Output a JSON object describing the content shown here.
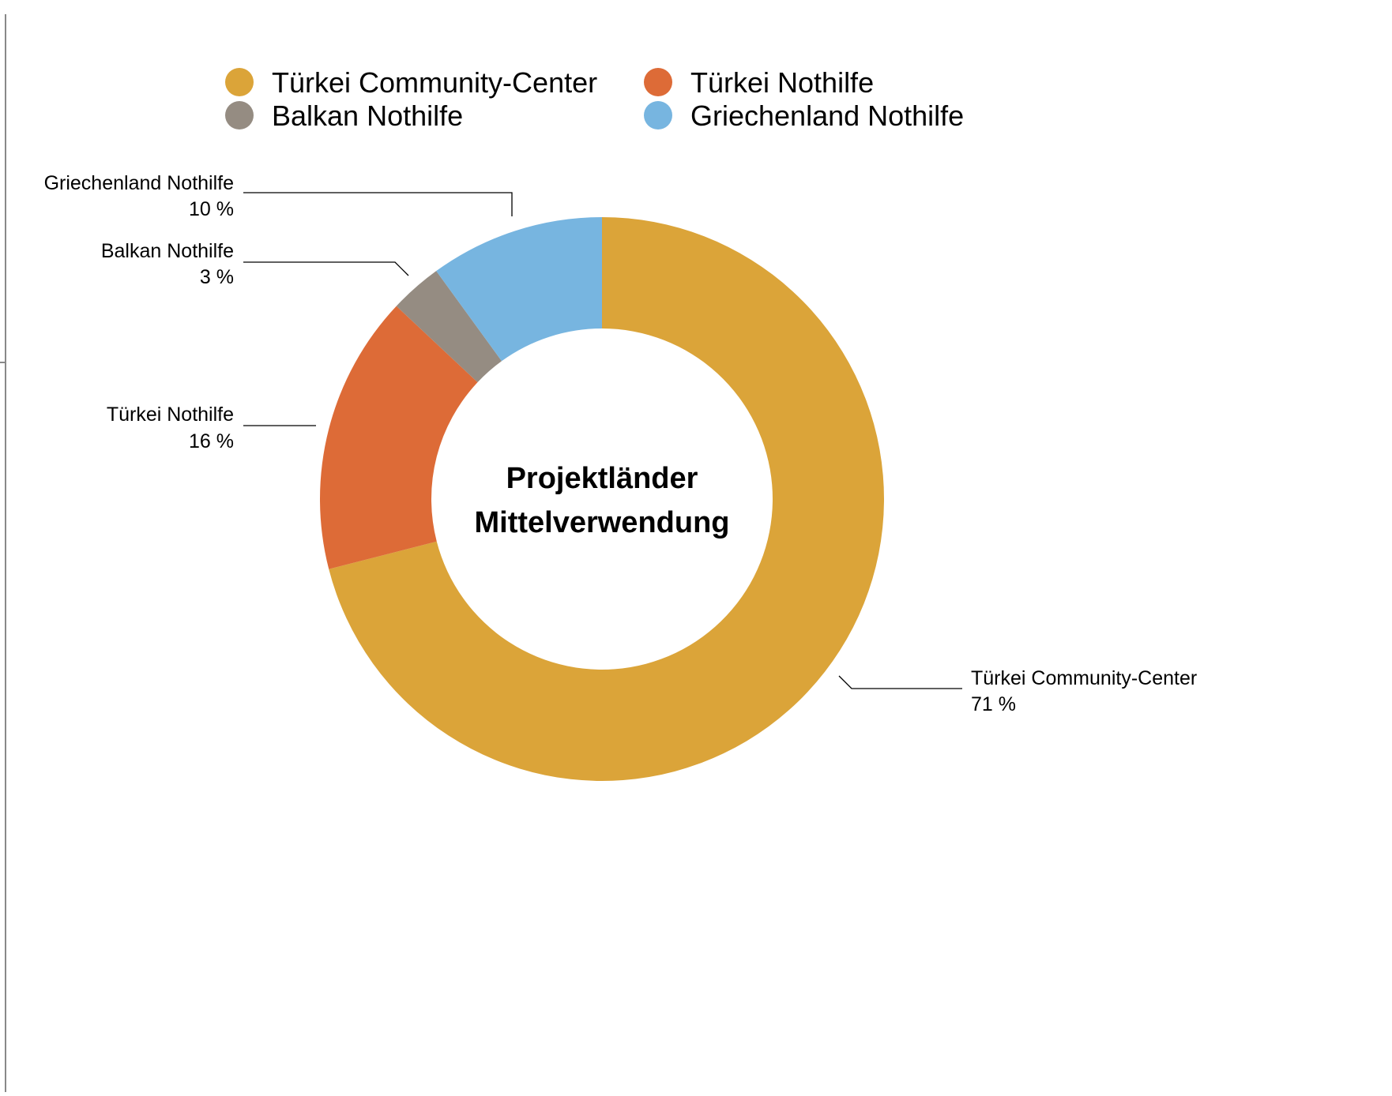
{
  "chart_data": {
    "type": "pie",
    "variant": "donut",
    "center_label": [
      "Projektländer",
      "Mittelverwendung"
    ],
    "legend": {
      "placement": "top",
      "entries": [
        "Türkei Community-Center",
        "Türkei Nothilfe",
        "Balkan Nothilfe",
        "Griechenland Nothilfe"
      ]
    },
    "slices": [
      {
        "label": "Türkei Community-Center",
        "value": 71,
        "value_label": "71 %",
        "color": "#DBA439"
      },
      {
        "label": "Türkei Nothilfe",
        "value": 16,
        "value_label": "16 %",
        "color": "#DD6B37"
      },
      {
        "label": "Balkan Nothilfe",
        "value": 3,
        "value_label": "3 %",
        "color": "#958C82"
      },
      {
        "label": "Griechenland Nothilfe",
        "value": 10,
        "value_label": "10 %",
        "color": "#77B5E0"
      }
    ],
    "unit": "%"
  }
}
